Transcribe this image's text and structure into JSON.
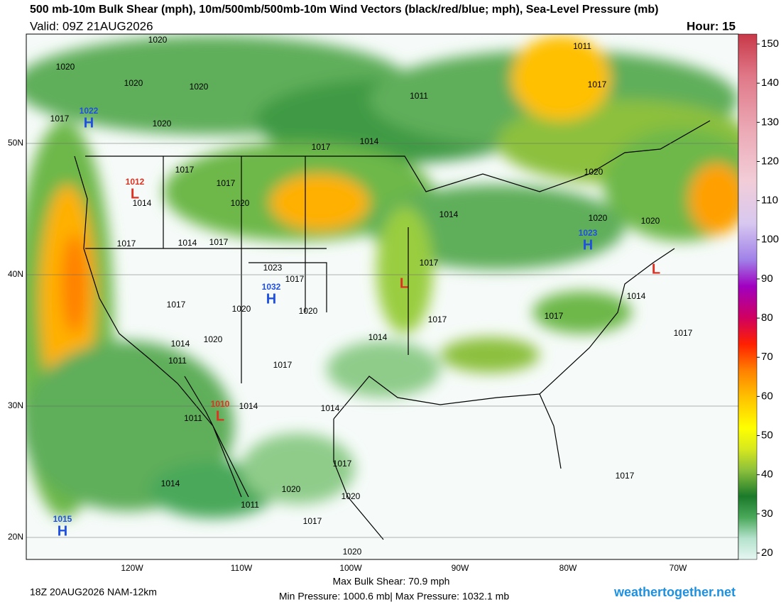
{
  "header": {
    "title": "500 mb-10m Bulk Shear (mph), 10m/500mb/500mb-10m Wind Vectors (black/red/blue; mph), Sea-Level Pressure (mb)",
    "valid": "Valid: 09Z 21AUG2026",
    "hour": "Hour: 15"
  },
  "map": {
    "lat_labels": [
      "50N",
      "40N",
      "30N",
      "20N"
    ],
    "lon_labels": [
      "120W",
      "110W",
      "100W",
      "90W",
      "80W",
      "70W"
    ],
    "isobar_labels": [
      "1020",
      "1020",
      "1020",
      "1020",
      "1020",
      "1017",
      "1011",
      "1017",
      "1011",
      "1017",
      "1014",
      "1017",
      "1017",
      "1020",
      "1014",
      "1014",
      "1020",
      "1020",
      "1020",
      "1017",
      "1014",
      "1017",
      "1023",
      "1017",
      "1017",
      "1017",
      "1020",
      "1020",
      "1017",
      "1017",
      "1014",
      "1017",
      "1014",
      "1020",
      "1014",
      "1011",
      "1017",
      "1014",
      "1014",
      "1011",
      "1017",
      "1020",
      "1020",
      "1014",
      "1011",
      "1017",
      "1020",
      "1017"
    ],
    "highs": [
      {
        "pressure": "1022",
        "symbol": "H"
      },
      {
        "pressure": "1032",
        "symbol": "H"
      },
      {
        "pressure": "1023",
        "symbol": "H"
      },
      {
        "pressure": "1015",
        "symbol": "H"
      }
    ],
    "lows": [
      {
        "pressure": "1012",
        "symbol": "L"
      },
      {
        "pressure": "1010",
        "symbol": "L"
      },
      {
        "symbol": "L"
      },
      {
        "symbol": "L"
      }
    ]
  },
  "colorbar": {
    "ticks": [
      20,
      30,
      40,
      50,
      60,
      70,
      80,
      90,
      100,
      110,
      120,
      130,
      140,
      150
    ]
  },
  "footer": {
    "run": "18Z 20AUG2026 NAM-12km",
    "max_shear": "Max Bulk Shear:  70.9 mph",
    "pressure_range": "Min Pressure: 1000.6 mb| Max Pressure: 1032.1 mb",
    "site": "weathertogether.net"
  }
}
